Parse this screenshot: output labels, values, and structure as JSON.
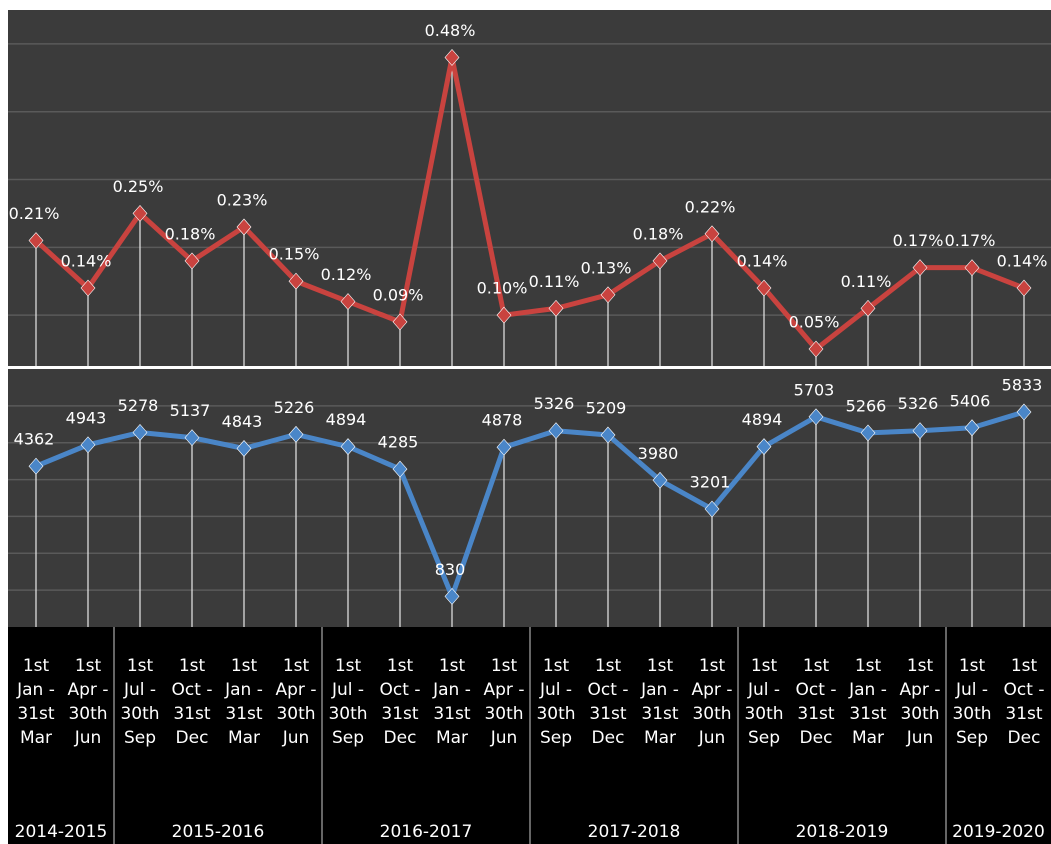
{
  "chart_data": [
    {
      "type": "line",
      "ylim": [
        0.025,
        0.55
      ],
      "yticks": [
        0.1,
        0.2,
        0.3,
        0.4,
        0.5
      ],
      "grid": true,
      "series": [
        {
          "color": "#c9433f",
          "values": [
            0.21,
            0.14,
            0.25,
            0.18,
            0.23,
            0.15,
            0.12,
            0.09,
            0.48,
            0.1,
            0.11,
            0.13,
            0.18,
            0.22,
            0.14,
            0.05,
            0.11,
            0.17,
            0.17,
            0.14
          ],
          "value_labels": [
            "0.21%",
            "0.14%",
            "0.25%",
            "0.18%",
            "0.23%",
            "0.15%",
            "0.12%",
            "0.09%",
            "0.48%",
            "0.10%",
            "0.11%",
            "0.13%",
            "0.18%",
            "0.22%",
            "0.14%",
            "0.05%",
            "0.11%",
            "0.17%",
            "0.17%",
            "0.14%"
          ]
        }
      ]
    },
    {
      "type": "line",
      "ylim": [
        0,
        7000
      ],
      "yticks": [
        1000,
        2000,
        3000,
        4000,
        5000,
        6000
      ],
      "grid": true,
      "categories": [
        [
          "1st",
          "Jan -",
          "31st",
          "Mar"
        ],
        [
          "1st",
          "Apr -",
          "30th",
          "Jun"
        ],
        [
          "1st",
          "Jul -",
          "30th",
          "Sep"
        ],
        [
          "1st",
          "Oct -",
          "31st",
          "Dec"
        ],
        [
          "1st",
          "Jan -",
          "31st",
          "Mar"
        ],
        [
          "1st",
          "Apr -",
          "30th",
          "Jun"
        ],
        [
          "1st",
          "Jul -",
          "30th",
          "Sep"
        ],
        [
          "1st",
          "Oct -",
          "31st",
          "Dec"
        ],
        [
          "1st",
          "Jan -",
          "31st",
          "Mar"
        ],
        [
          "1st",
          "Apr -",
          "30th",
          "Jun"
        ],
        [
          "1st",
          "Jul -",
          "30th",
          "Sep"
        ],
        [
          "1st",
          "Oct -",
          "31st",
          "Dec"
        ],
        [
          "1st",
          "Jan -",
          "31st",
          "Mar"
        ],
        [
          "1st",
          "Apr -",
          "30th",
          "Jun"
        ],
        [
          "1st",
          "Jul -",
          "30th",
          "Sep"
        ],
        [
          "1st",
          "Oct -",
          "31st",
          "Dec"
        ],
        [
          "1st",
          "Jan -",
          "31st",
          "Mar"
        ],
        [
          "1st",
          "Apr -",
          "30th",
          "Jun"
        ],
        [
          "1st",
          "Jul -",
          "30th",
          "Sep"
        ],
        [
          "1st",
          "Oct -",
          "31st",
          "Dec"
        ]
      ],
      "groups": [
        {
          "label": "2014-2015",
          "count": 2
        },
        {
          "label": "2015-2016",
          "count": 4
        },
        {
          "label": "2016-2017",
          "count": 4
        },
        {
          "label": "2017-2018",
          "count": 4
        },
        {
          "label": "2018-2019",
          "count": 4
        },
        {
          "label": "2019-2020",
          "count": 2
        }
      ],
      "series": [
        {
          "color": "#4a86c8",
          "values": [
            4362,
            4943,
            5278,
            5137,
            4843,
            5226,
            4894,
            4285,
            830,
            4878,
            5326,
            5209,
            3980,
            3201,
            4894,
            5703,
            5266,
            5326,
            5406,
            5833
          ]
        }
      ]
    }
  ]
}
